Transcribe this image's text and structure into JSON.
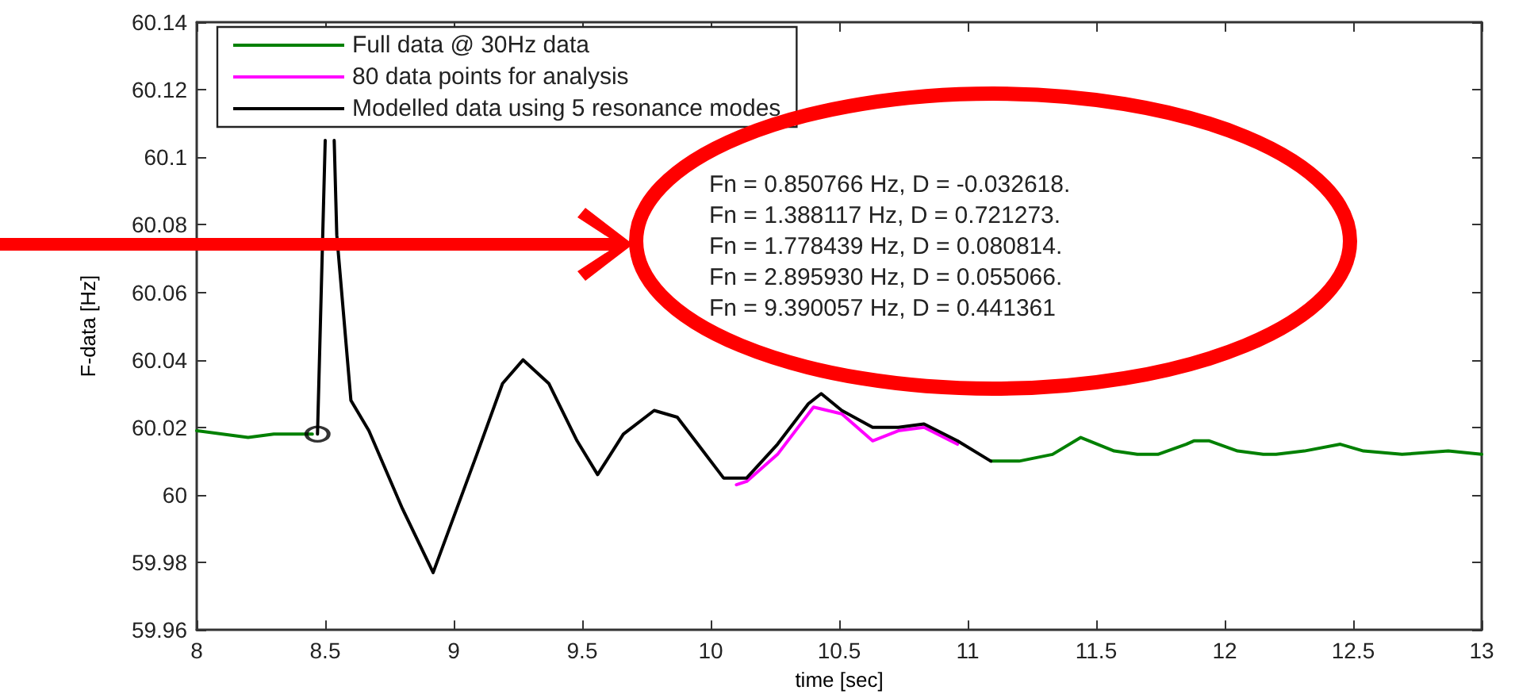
{
  "chart_data": {
    "type": "line",
    "xlabel": "time [sec]",
    "ylabel": "F-data [Hz]",
    "xlim": [
      8,
      13
    ],
    "xticks": [
      8,
      8.5,
      9,
      9.5,
      10,
      10.5,
      11,
      11.5,
      12,
      12.5,
      13
    ],
    "ylim": [
      59.96,
      60.14
    ],
    "yticks": [
      59.96,
      59.98,
      60,
      60.02,
      60.04,
      60.06,
      60.08,
      60.1,
      60.12,
      60.14
    ],
    "grid": false,
    "legend": "top left",
    "marker": "none",
    "line_style": "solid",
    "annotations": [
      "Fn = 0.850766 Hz, D = -0.032618.",
      "Fn = 1.388117 Hz, D = 0.721273.",
      "Fn = 1.778439 Hz, D = 0.080814.",
      "Fn = 2.895930 Hz, D = 0.055066.",
      "Fn = 9.390057 Hz, D = 0.441361"
    ],
    "series": [
      {
        "name": "Full data @ 30Hz data",
        "color": "#008000",
        "x": [
          8,
          8.1,
          8.2,
          8.3,
          8.45,
          8.48,
          11.09,
          11.2,
          11.33,
          11.44,
          11.57,
          11.66,
          11.74,
          11.85,
          11.88,
          11.94,
          12.05,
          12.15,
          12.2,
          12.31,
          12.45,
          12.54,
          12.69,
          12.87,
          13
        ],
        "values": [
          60.019,
          60.018,
          60.017,
          60.018,
          60.018,
          null,
          60.01,
          60.01,
          60.012,
          60.017,
          60.013,
          60.012,
          60.012,
          60.015,
          60.016,
          60.016,
          60.013,
          60.012,
          60.012,
          60.013,
          60.015,
          60.013,
          60.012,
          60.013,
          60.012
        ]
      },
      {
        "name": "80 data points for analysis",
        "color": "#ff00ff",
        "x": [
          10.1,
          10.14,
          10.26,
          10.4,
          10.51,
          10.63,
          10.73,
          10.83,
          10.96
        ],
        "values": [
          60.003,
          60.004,
          60.012,
          60.026,
          60.024,
          60.016,
          60.019,
          60.02,
          60.015
        ]
      },
      {
        "name": "Modelled data using 5 resonance modes",
        "color": "#000000",
        "x": [
          8.47,
          8.5,
          8.52,
          8.535,
          8.545,
          8.6,
          8.67,
          8.8,
          8.92,
          9.09,
          9.19,
          9.27,
          9.37,
          9.48,
          9.56,
          9.66,
          9.78,
          9.87,
          9.95,
          10.05,
          10.1,
          10.14,
          10.26,
          10.38,
          10.43,
          10.51,
          10.63,
          10.73,
          10.83,
          10.96,
          11.09
        ],
        "values": [
          60.018,
          60.105,
          null,
          60.105,
          60.077,
          60.028,
          60.019,
          59.996,
          59.977,
          60.012,
          60.033,
          60.04,
          60.033,
          60.016,
          60.006,
          60.018,
          60.025,
          60.023,
          60.015,
          60.005,
          60.005,
          60.005,
          60.015,
          60.027,
          60.03,
          60.025,
          60.02,
          60.02,
          60.021,
          60.016,
          60.01
        ]
      },
      {
        "type": "scatter",
        "marker": "circle",
        "color": "#000000",
        "x": [
          8.47
        ],
        "values": [
          60.018
        ]
      }
    ]
  }
}
